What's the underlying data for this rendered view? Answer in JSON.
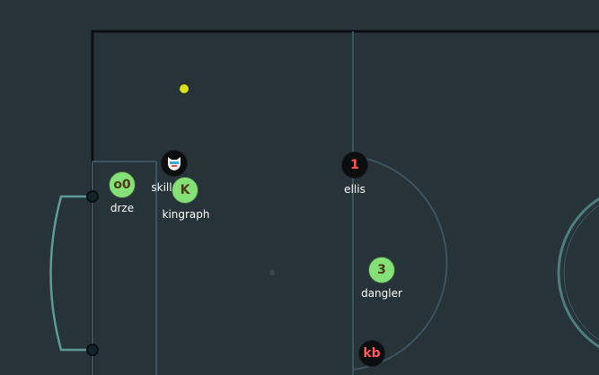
{
  "rink": {
    "background": "#263338",
    "boards_color": "#0c0f11",
    "line_color": "#3d5460",
    "goal_crease_color": "#5e9a96",
    "circle_color": "#4f7d7e"
  },
  "puck": {
    "color": "#d8e020"
  },
  "players": [
    {
      "team": "green",
      "number": "o0",
      "name": "drze"
    },
    {
      "team": "black",
      "avatar": "shield-face-icon",
      "name": "skill"
    },
    {
      "team": "green",
      "number": "K",
      "name": "kingraph"
    },
    {
      "team": "black",
      "number": "1",
      "name": "ellis"
    },
    {
      "team": "green",
      "number": "3",
      "name": "dangler"
    },
    {
      "team": "black",
      "number": "kb",
      "name": ""
    }
  ]
}
